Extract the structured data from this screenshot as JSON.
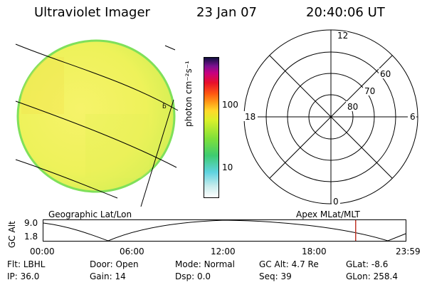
{
  "header": {
    "instrument": "Ultraviolet Imager",
    "date": "23 Jan 07",
    "time": "20:40:06 UT"
  },
  "colorbar": {
    "unit_label": "photon cm⁻²s⁻¹",
    "tick_100": "100",
    "tick_10": "10"
  },
  "polar": {
    "hour_top": "12",
    "hour_left": "18",
    "hour_right": "6",
    "hour_bottom": "0",
    "lat_60": "60",
    "lat_70": "70",
    "lat_80": "80"
  },
  "labels": {
    "left_grid": "Geographic Lat/Lon",
    "right_grid": "Apex MLat/MLT"
  },
  "timeline": {
    "ylabel": "GC Alt",
    "ymax": "9.0",
    "ymin": "1.8",
    "ticks": [
      "00:00",
      "06:00",
      "12:00",
      "18:00",
      "23:59"
    ],
    "marker_time_hours": 20.67
  },
  "footer": {
    "row1": [
      {
        "label": "Flt:",
        "value": "LBHL"
      },
      {
        "label": "Door:",
        "value": "Open"
      },
      {
        "label": "Mode:",
        "value": "Normal"
      },
      {
        "label": "GC Alt:",
        "value": "4.7 Re"
      },
      {
        "label": "GLat:",
        "value": "-8.6"
      }
    ],
    "row2": [
      {
        "label": "IP:",
        "value": "36.0"
      },
      {
        "label": "Gain:",
        "value": "14"
      },
      {
        "label": "Dsp:",
        "value": "0.0"
      },
      {
        "label": "Seq:",
        "value": "39"
      },
      {
        "label": "GLon:",
        "value": "258.4"
      }
    ]
  },
  "colors": {
    "disk_fill": "#eef25a",
    "disk_rim": "#7fe05a",
    "marker": "#c0392b"
  }
}
